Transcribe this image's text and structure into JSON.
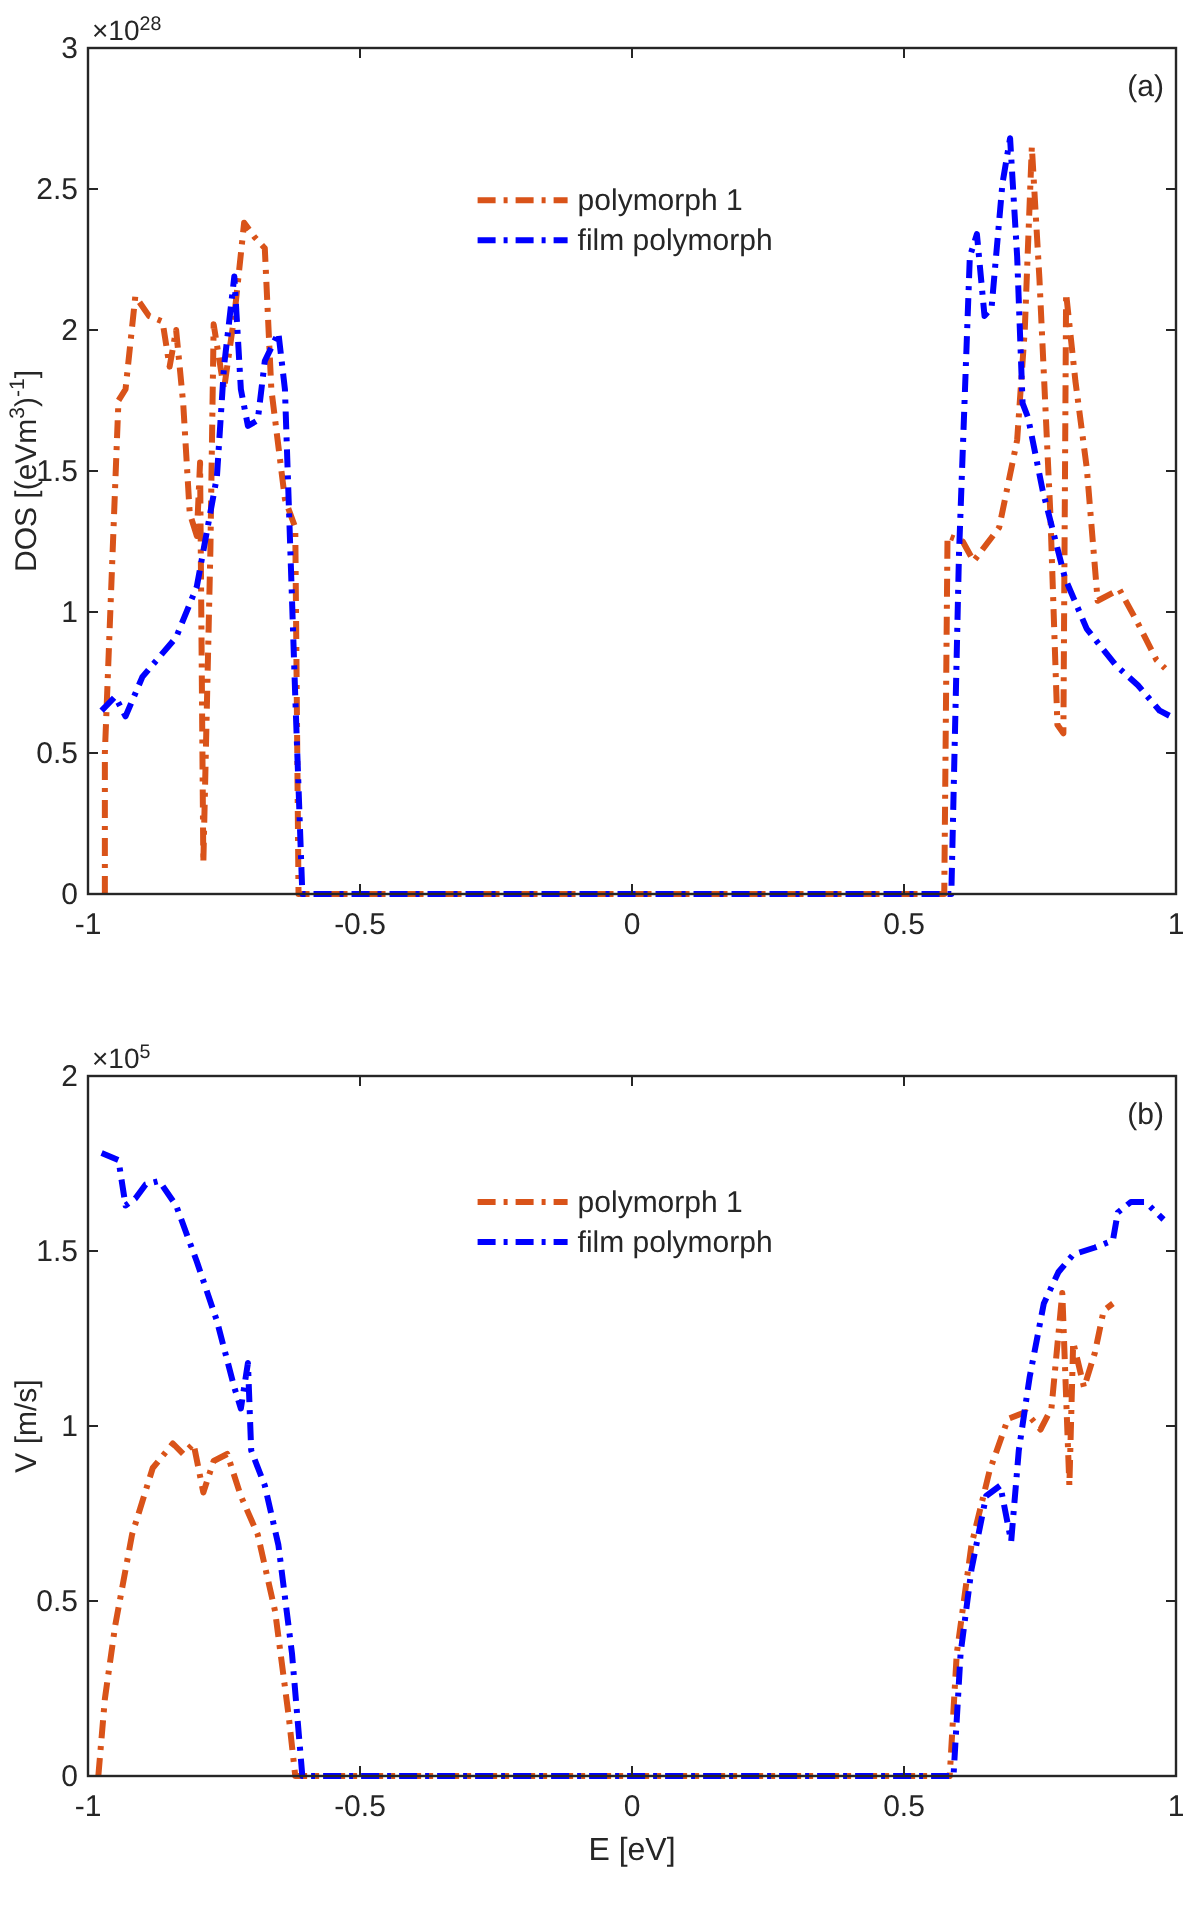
{
  "chart_data": [
    {
      "type": "line",
      "ylabel": "DOS [(eVm$^{3}$)$^{-1}$]",
      "annotations": [
        "×10$^{28}$",
        "(a)"
      ],
      "xlim": [
        -1,
        1
      ],
      "xticks": [
        -1,
        -0.5,
        0,
        0.5,
        1
      ],
      "ylim": [
        0,
        3
      ],
      "yticks": [
        0,
        0.5,
        1,
        1.5,
        2,
        2.5,
        3
      ],
      "grid": false,
      "legend": "top",
      "line_style": "dashed",
      "marker": "none",
      "series": [
        {
          "name": "polymorph 1",
          "color": "#d95319",
          "x": [
            -0.969,
            -0.969,
            -0.944,
            -0.931,
            -0.913,
            -0.888,
            -0.863,
            -0.85,
            -0.838,
            -0.825,
            -0.813,
            -0.8,
            -0.794,
            -0.788,
            -0.775,
            -0.769,
            -0.75,
            -0.731,
            -0.713,
            -0.694,
            -0.675,
            -0.663,
            -0.638,
            -0.619,
            -0.613,
            0.574,
            0.58,
            0.608,
            0.628,
            0.675,
            0.708,
            0.722,
            0.735,
            0.749,
            0.769,
            0.782,
            0.793,
            0.798,
            0.815,
            0.836,
            0.856,
            0.896,
            0.93,
            0.964,
            0.98
          ],
          "values": [
            0,
            0.5,
            1.75,
            1.79,
            2.12,
            2.05,
            2.03,
            1.87,
            2.0,
            1.74,
            1.35,
            1.27,
            1.53,
            0.11,
            1.22,
            2.02,
            1.79,
            2.05,
            2.38,
            2.33,
            2.29,
            1.79,
            1.4,
            1.3,
            0,
            0,
            1.27,
            1.25,
            1.18,
            1.3,
            1.61,
            2.0,
            2.65,
            2.18,
            1.35,
            0.6,
            0.57,
            2.13,
            1.82,
            1.51,
            1.04,
            1.08,
            0.96,
            0.83,
            0.8
          ]
        },
        {
          "name": "film polymorph",
          "color": "#0000ff",
          "x": [
            -0.975,
            -0.95,
            -0.931,
            -0.9,
            -0.838,
            -0.8,
            -0.763,
            -0.75,
            -0.731,
            -0.719,
            -0.706,
            -0.688,
            -0.675,
            -0.65,
            -0.638,
            -0.619,
            -0.606,
            0.587,
            0.601,
            0.621,
            0.634,
            0.648,
            0.661,
            0.681,
            0.695,
            0.708,
            0.718,
            0.728,
            0.755,
            0.796,
            0.836,
            0.89,
            0.93,
            0.97,
            1.0
          ],
          "values": [
            0.65,
            0.7,
            0.63,
            0.77,
            0.91,
            1.09,
            1.48,
            1.87,
            2.19,
            1.79,
            1.66,
            1.68,
            1.89,
            1.99,
            1.79,
            0.7,
            0,
            0,
            1.2,
            2.26,
            2.34,
            2.05,
            2.08,
            2.52,
            2.68,
            2.26,
            1.74,
            1.69,
            1.43,
            1.12,
            0.94,
            0.81,
            0.74,
            0.65,
            0.62
          ]
        }
      ]
    },
    {
      "type": "line",
      "xlabel": "E [eV]",
      "ylabel": "V [m/s]",
      "annotations": [
        "×10$^{5}$",
        "(b)"
      ],
      "xlim": [
        -1,
        1
      ],
      "xticks": [
        -1,
        -0.5,
        0,
        0.5,
        1
      ],
      "ylim": [
        0,
        2
      ],
      "yticks": [
        0,
        0.5,
        1,
        1.5,
        2
      ],
      "grid": false,
      "legend": "top",
      "line_style": "dashed",
      "marker": "none",
      "series": [
        {
          "name": "polymorph 1",
          "color": "#d95319",
          "x": [
            -0.981,
            -0.969,
            -0.95,
            -0.919,
            -0.881,
            -0.844,
            -0.825,
            -0.806,
            -0.788,
            -0.769,
            -0.744,
            -0.719,
            -0.688,
            -0.656,
            -0.631,
            -0.619,
            0.584,
            0.597,
            0.624,
            0.657,
            0.691,
            0.724,
            0.751,
            0.771,
            0.791,
            0.804,
            0.811,
            0.831,
            0.851,
            0.867,
            0.884
          ],
          "values": [
            0,
            0.22,
            0.43,
            0.69,
            0.88,
            0.95,
            0.92,
            0.95,
            0.81,
            0.9,
            0.92,
            0.8,
            0.69,
            0.47,
            0.17,
            0,
            0,
            0.35,
            0.66,
            0.87,
            1.02,
            1.04,
            0.99,
            1.05,
            1.38,
            0.83,
            1.24,
            1.11,
            1.21,
            1.33,
            1.35
          ]
        },
        {
          "name": "film polymorph",
          "color": "#0000ff",
          "x": [
            -0.975,
            -0.944,
            -0.931,
            -0.913,
            -0.894,
            -0.869,
            -0.838,
            -0.8,
            -0.763,
            -0.731,
            -0.719,
            -0.706,
            -0.7,
            -0.675,
            -0.65,
            -0.625,
            -0.606,
            0.591,
            0.604,
            0.624,
            0.651,
            0.677,
            0.697,
            0.711,
            0.731,
            0.757,
            0.784,
            0.811,
            0.851,
            0.884,
            0.893,
            0.917,
            0.944,
            0.977
          ],
          "values": [
            1.78,
            1.76,
            1.63,
            1.65,
            1.69,
            1.7,
            1.63,
            1.47,
            1.3,
            1.11,
            1.05,
            1.18,
            0.93,
            0.83,
            0.66,
            0.35,
            0,
            0,
            0.35,
            0.59,
            0.8,
            0.83,
            0.67,
            0.93,
            1.14,
            1.35,
            1.44,
            1.49,
            1.51,
            1.53,
            1.61,
            1.64,
            1.64,
            1.59
          ]
        }
      ]
    }
  ]
}
